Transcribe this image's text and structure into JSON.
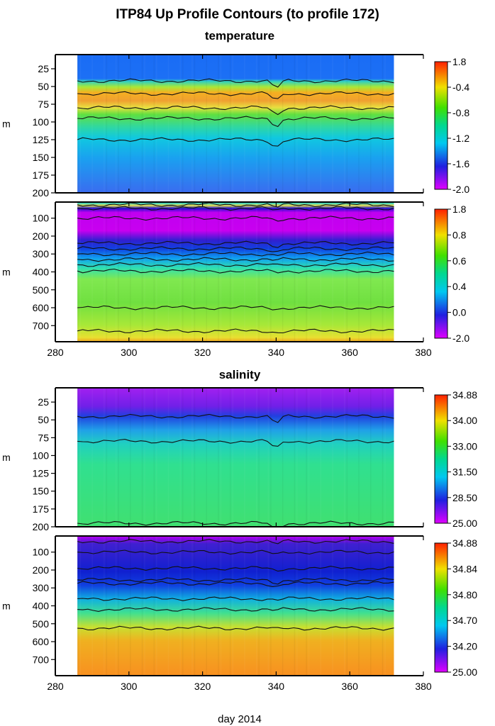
{
  "title": "ITP84 Up Profile Contours (to profile 172)",
  "xlabel": "day 2014",
  "ylabel": "m",
  "chart_data": [
    {
      "type": "heatmap",
      "section": "temperature",
      "subtitle": "temperature",
      "x_range": [
        280,
        380
      ],
      "x_ticks": [
        280,
        300,
        320,
        340,
        360,
        380
      ],
      "data_x_range": [
        286,
        372
      ],
      "ylim": [
        200,
        5
      ],
      "y_ticks": [
        25,
        50,
        75,
        100,
        125,
        150,
        175,
        200
      ],
      "colorbar_labels": [
        "1.8",
        "-0.4",
        "-0.8",
        "-1.2",
        "-1.6",
        "-2.0"
      ],
      "contour_depths": [
        42,
        60,
        80,
        95,
        125
      ]
    },
    {
      "type": "heatmap",
      "section": "temperature",
      "subtitle": "",
      "x_range": [
        280,
        380
      ],
      "x_ticks": [
        280,
        300,
        320,
        340,
        360,
        380
      ],
      "data_x_range": [
        286,
        372
      ],
      "ylim": [
        790,
        10
      ],
      "y_ticks": [
        100,
        200,
        300,
        400,
        500,
        600,
        700
      ],
      "colorbar_labels": [
        "1.8",
        "0.8",
        "0.6",
        "0.4",
        "0.0",
        "-2.0"
      ],
      "contour_depths": [
        25,
        45,
        100,
        240,
        270,
        300,
        330,
        360,
        395,
        600,
        730
      ]
    },
    {
      "type": "heatmap",
      "section": "salinity",
      "subtitle": "salinity",
      "x_range": [
        280,
        380
      ],
      "x_ticks": [
        280,
        300,
        320,
        340,
        360,
        380
      ],
      "data_x_range": [
        286,
        372
      ],
      "ylim": [
        200,
        5
      ],
      "y_ticks": [
        25,
        50,
        75,
        100,
        125,
        150,
        175,
        200
      ],
      "colorbar_labels": [
        "34.88",
        "34.00",
        "33.00",
        "31.50",
        "28.50",
        "25.00"
      ],
      "contour_depths": [
        45,
        80,
        195
      ]
    },
    {
      "type": "heatmap",
      "section": "salinity",
      "subtitle": "",
      "x_range": [
        280,
        380
      ],
      "x_ticks": [
        280,
        300,
        320,
        340,
        360,
        380
      ],
      "data_x_range": [
        286,
        372
      ],
      "ylim": [
        790,
        10
      ],
      "y_ticks": [
        100,
        200,
        300,
        400,
        500,
        600,
        700
      ],
      "colorbar_labels": [
        "34.88",
        "34.84",
        "34.80",
        "34.70",
        "34.20",
        "25.00"
      ],
      "contour_depths": [
        40,
        100,
        190,
        255,
        275,
        360,
        420,
        525
      ]
    }
  ]
}
